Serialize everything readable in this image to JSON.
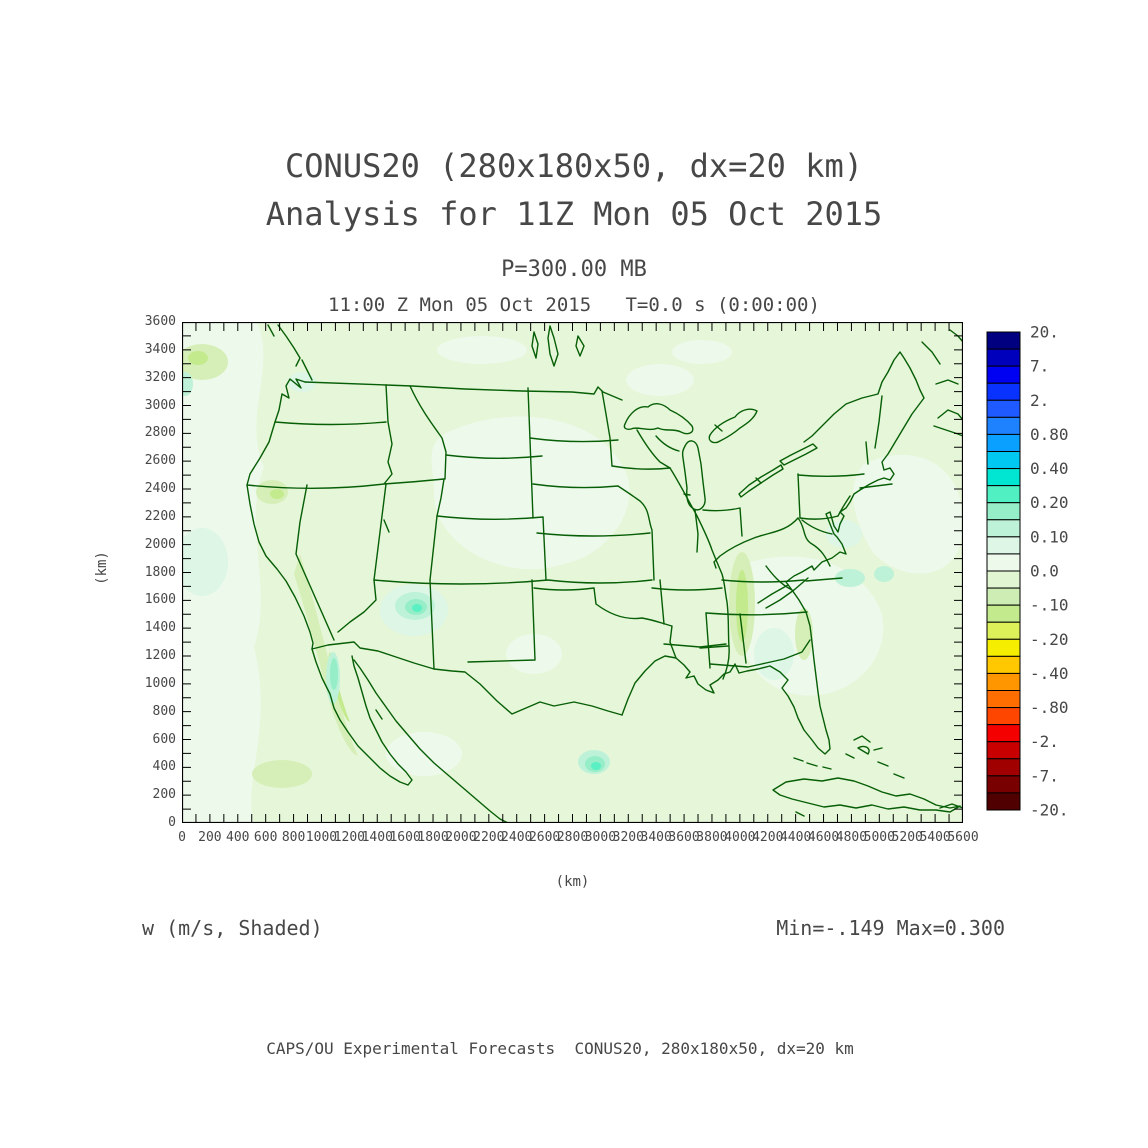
{
  "header": {
    "title_line1": "CONUS20 (280x180x50, dx=20 km)",
    "title_line2": "Analysis for 11Z Mon 05 Oct 2015",
    "pressure_level": "P=300.00 MB",
    "valid_time_line": "11:00 Z Mon 05 Oct 2015   T=0.0 s (0:00:00)"
  },
  "axes": {
    "x_unit": "(km)",
    "y_unit": "(km)",
    "x_tick_labels": [
      "0",
      "200",
      "400",
      "600",
      "800",
      "1000",
      "1200",
      "1400",
      "1600",
      "1800",
      "2000",
      "2200",
      "2400",
      "2600",
      "2800",
      "3000",
      "3200",
      "3400",
      "3600",
      "3800",
      "4000",
      "4200",
      "4400",
      "4600",
      "4800",
      "5000",
      "5200",
      "5400",
      "5600"
    ],
    "y_tick_labels": [
      "0",
      "200",
      "400",
      "600",
      "800",
      "1000",
      "1200",
      "1400",
      "1600",
      "1800",
      "2000",
      "2200",
      "2400",
      "2600",
      "2800",
      "3000",
      "3200",
      "3400",
      "3600"
    ]
  },
  "colorbar": {
    "labels": [
      "20.",
      "7.",
      "2.",
      "0.80",
      "0.40",
      "0.20",
      "0.10",
      "0.0",
      "-.10",
      "-.20",
      "-.40",
      "-.80",
      "-2.",
      "-7.",
      "-20."
    ],
    "cell_colors": [
      "#000080",
      "#0000bc",
      "#0000f2",
      "#0a32ff",
      "#1e5aff",
      "#1e82ff",
      "#0aa0ff",
      "#00c8f0",
      "#00e6d2",
      "#50f0c3",
      "#96eec8",
      "#bef2d8",
      "#ddf6e6",
      "#edf9ea",
      "#e2f5d2",
      "#cdedb4",
      "#c3ea8c",
      "#ddf05a",
      "#f5ee00",
      "#ffc800",
      "#ff9600",
      "#ff6e00",
      "#ff4600",
      "#f50000",
      "#c80000",
      "#a00000",
      "#780000",
      "#500000"
    ]
  },
  "annotations": {
    "field_label": "w (m/s, Shaded)",
    "minmax_label": "Min=-.149 Max=0.300"
  },
  "footer": {
    "credit": "CAPS/OU Experimental Forecasts  CONUS20, 280x180x50, dx=20 km"
  },
  "map_style": {
    "border_color": "#065e06",
    "base_fill": "#e6f6d8",
    "frame_color": "#000000",
    "text_color": "#474747",
    "palette": {
      "p14": "#edf9ea",
      "p13": "#ddf6e6",
      "p12": "#bef2d8",
      "p11": "#96eec8",
      "p10": "#5af0c3",
      "g16": "#d6efb8",
      "g17": "#c3ea8c"
    }
  },
  "chart_data": {
    "type": "heatmap",
    "title": "CONUS20 (280x180x50, dx=20 km) Analysis for 11Z Mon 05 Oct 2015",
    "field": "w",
    "units": "m/s",
    "render": "Shaded",
    "pressure_level_mb": 300.0,
    "valid_time": "11:00 Z Mon 05 Oct 2015",
    "forecast_time": "T=0.0 s (0:00:00)",
    "min": -0.149,
    "max": 0.3,
    "xlabel": "(km)",
    "ylabel": "(km)",
    "xlim": [
      0,
      5600
    ],
    "ylim": [
      0,
      3600
    ],
    "x_tick_step": 200,
    "y_tick_step": 200,
    "minor_tick_step": 100,
    "grid": "off",
    "legend_position": "right-colorbar",
    "colorbar_levels": [
      20,
      7,
      2,
      0.8,
      0.4,
      0.2,
      0.1,
      0.0,
      -0.1,
      -0.2,
      -0.4,
      -0.8,
      -2,
      -7,
      -20
    ],
    "domain_grid": "280x180x50",
    "dx": "20 km",
    "region": "Continental United States map with state borders, vertical velocity shading mostly 0 to -0.1 m/s (pale green) with weak updraft patches (mint/cyan/turquoise, up to 0.300) and weak downdraft streaks (yellow-green, down to -0.149)"
  }
}
